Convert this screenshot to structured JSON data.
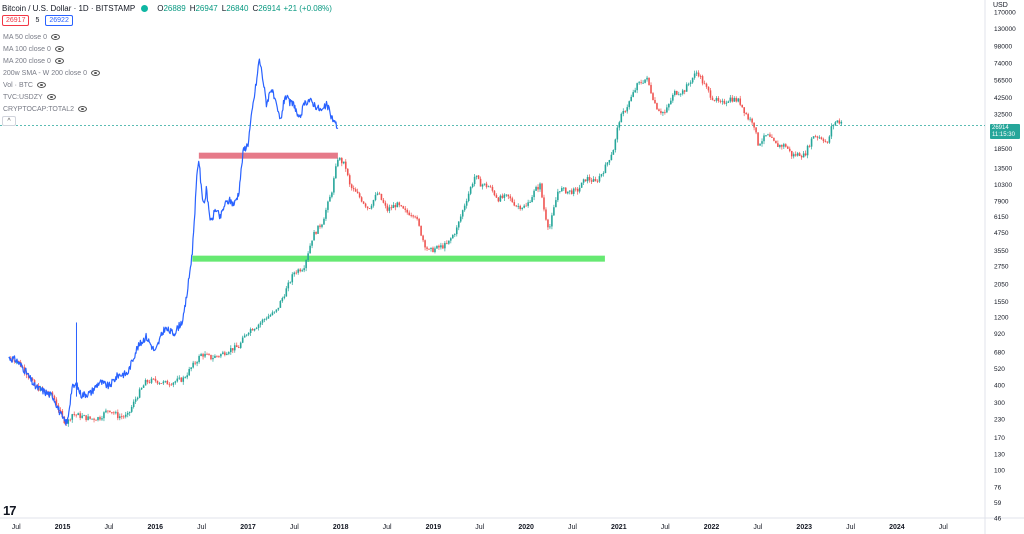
{
  "header": {
    "symbol": "Bitcoin / U.S. Dollar · 1D · BITSTAMP",
    "o_label": "O",
    "o_value": "26889",
    "h_label": "H",
    "h_value": "26947",
    "l_label": "L",
    "l_value": "26840",
    "c_label": "C",
    "c_value": "26914",
    "change": "+21 (+0.08%)",
    "sell_price": "26917",
    "spread": "5",
    "buy_price": "26922"
  },
  "indicators": [
    {
      "label": "MA 50 close 0"
    },
    {
      "label": "MA 100 close 0"
    },
    {
      "label": "MA 200 close 0"
    },
    {
      "label": "200w SMA - W 200 close 0"
    },
    {
      "label": "Vol · BTC"
    },
    {
      "label": "TVC:USDZY"
    },
    {
      "label": "CRYPTOCAP:TOTAL2"
    }
  ],
  "collapse_label": "^",
  "axis": {
    "currency": "USD",
    "last_price": "26914",
    "countdown": "11:15:30"
  },
  "logo_text": "17",
  "colors": {
    "up": "#26a69a",
    "down": "#ef5350",
    "overlay": "#2962ff",
    "resistance": "#e57383",
    "support": "#5ee86a",
    "priceline": "#26a69a"
  },
  "chart_data": {
    "type": "line",
    "scale": "log",
    "ylim": [
      46,
      170000
    ],
    "y_ticks": [
      "170000",
      "130000",
      "98000",
      "74000",
      "56500",
      "42500",
      "32500",
      "24500",
      "18500",
      "13500",
      "10300",
      "7900",
      "6150",
      "4750",
      "3550",
      "2750",
      "2050",
      "1550",
      "1200",
      "920",
      "680",
      "520",
      "400",
      "300",
      "230",
      "170",
      "130",
      "100",
      "76",
      "59",
      "46"
    ],
    "x_ticks": [
      "Jul",
      "2015",
      "Jul",
      "2016",
      "Jul",
      "2017",
      "Jul",
      "2018",
      "Jul",
      "2019",
      "Jul",
      "2020",
      "Jul",
      "2021",
      "Jul",
      "2022",
      "Jul",
      "2023",
      "Jul",
      "2024",
      "Jul"
    ],
    "series": [
      {
        "kind": "candles",
        "x": [
          2014.42,
          2014.5,
          2014.6,
          2014.7,
          2014.8,
          2014.9,
          2015.0,
          2015.05,
          2015.1,
          2015.2,
          2015.3,
          2015.4,
          2015.5,
          2015.6,
          2015.7,
          2015.8,
          2015.9,
          2016.0,
          2016.1,
          2016.2,
          2016.3,
          2016.4,
          2016.5,
          2016.6,
          2016.7,
          2016.8,
          2016.9,
          2017.0,
          2017.1,
          2017.2,
          2017.3,
          2017.4,
          2017.5,
          2017.6,
          2017.7,
          2017.8,
          2017.9,
          2017.97,
          2018.05,
          2018.1,
          2018.2,
          2018.3,
          2018.4,
          2018.5,
          2018.6,
          2018.7,
          2018.8,
          2018.9,
          2018.95,
          2019.05,
          2019.15,
          2019.25,
          2019.35,
          2019.45,
          2019.5,
          2019.6,
          2019.7,
          2019.8,
          2019.9,
          2020.0,
          2020.1,
          2020.15,
          2020.2,
          2020.25,
          2020.35,
          2020.45,
          2020.55,
          2020.65,
          2020.75,
          2020.85,
          2020.95,
          2021.0,
          2021.1,
          2021.2,
          2021.3,
          2021.4,
          2021.45,
          2021.5,
          2021.6,
          2021.7,
          2021.8,
          2021.85,
          2021.9,
          2022.0,
          2022.1,
          2022.2,
          2022.3,
          2022.4,
          2022.45,
          2022.5,
          2022.6,
          2022.7,
          2022.8,
          2022.87,
          2022.95,
          2023.0,
          2023.1,
          2023.2,
          2023.25,
          2023.3,
          2023.35,
          2023.4
        ],
        "y": [
          620,
          600,
          500,
          390,
          360,
          330,
          230,
          215,
          250,
          240,
          230,
          235,
          270,
          240,
          240,
          330,
          420,
          430,
          410,
          420,
          440,
          540,
          660,
          620,
          650,
          710,
          740,
          960,
          1050,
          1200,
          1300,
          1800,
          2500,
          2700,
          4500,
          5600,
          9000,
          16000,
          14000,
          10000,
          8500,
          7000,
          9000,
          6800,
          7500,
          6600,
          6400,
          4000,
          3500,
          3700,
          3900,
          5000,
          7900,
          12000,
          10500,
          10000,
          8200,
          8500,
          7300,
          7200,
          9500,
          10200,
          6500,
          5000,
          9700,
          9200,
          9300,
          11500,
          10700,
          13500,
          19000,
          29000,
          38000,
          52000,
          58000,
          37000,
          34000,
          33000,
          46000,
          47000,
          59000,
          65000,
          55000,
          43000,
          38000,
          42000,
          40000,
          30000,
          29000,
          20000,
          23000,
          19500,
          19500,
          16500,
          17000,
          16500,
          23000,
          22000,
          19800,
          27000,
          29000,
          28500
        ]
      },
      {
        "kind": "line",
        "name": "",
        "x": [
          2014.42,
          2014.5,
          2014.6,
          2014.7,
          2014.8,
          2014.9,
          2015.0,
          2015.05,
          2015.1,
          2015.15,
          2015.2,
          2015.3,
          2015.4,
          2015.5,
          2015.6,
          2015.7,
          2015.8,
          2015.9,
          2016.0,
          2016.05,
          2016.1,
          2016.2,
          2016.3,
          2016.35,
          2016.4,
          2016.45,
          2016.47,
          2016.5,
          2016.53,
          2016.55,
          2016.6,
          2016.65,
          2016.7,
          2016.75,
          2016.8,
          2016.85,
          2016.9,
          2016.95,
          2017.0,
          2017.05,
          2017.1,
          2017.12,
          2017.15,
          2017.2,
          2017.25,
          2017.3,
          2017.35,
          2017.4,
          2017.45,
          2017.5,
          2017.55,
          2017.6,
          2017.65,
          2017.7,
          2017.75,
          2017.8,
          2017.85,
          2017.9,
          2017.97
        ],
        "y": [
          620,
          600,
          500,
          390,
          360,
          330,
          230,
          215,
          380,
          400,
          340,
          350,
          420,
          390,
          470,
          480,
          720,
          880,
          680,
          840,
          1000,
          920,
          1150,
          1900,
          3500,
          12000,
          16000,
          9000,
          7600,
          9500,
          5500,
          7000,
          6000,
          7500,
          8000,
          7500,
          9000,
          18000,
          20000,
          36000,
          60000,
          80000,
          64000,
          38000,
          50000,
          38000,
          29000,
          44000,
          39000,
          38000,
          29000,
          37000,
          41000,
          39000,
          36000,
          34000,
          38000,
          31000,
          26000
        ]
      },
      {
        "kind": "hline",
        "name": "",
        "x": [
          2016.47,
          2017.97
        ],
        "y": 16500
      },
      {
        "kind": "hline",
        "name": "",
        "x": [
          2016.4,
          2020.85
        ],
        "y": 3100
      }
    ],
    "last_price": 26914
  }
}
